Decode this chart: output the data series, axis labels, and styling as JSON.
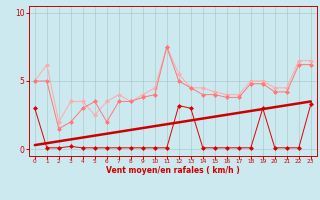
{
  "x": [
    0,
    1,
    2,
    3,
    4,
    5,
    6,
    7,
    8,
    9,
    10,
    11,
    12,
    13,
    14,
    15,
    16,
    17,
    18,
    19,
    20,
    21,
    22,
    23
  ],
  "series_light": [
    5.0,
    6.2,
    2.0,
    3.5,
    3.5,
    2.5,
    3.5,
    4.0,
    3.5,
    4.0,
    4.5,
    7.5,
    5.5,
    4.5,
    4.5,
    4.2,
    4.0,
    4.0,
    5.0,
    5.0,
    4.5,
    4.5,
    6.5,
    6.5
  ],
  "series_mid": [
    5.0,
    5.0,
    1.5,
    2.0,
    3.0,
    3.5,
    2.0,
    3.5,
    3.5,
    3.8,
    4.0,
    7.5,
    5.0,
    4.5,
    4.0,
    4.0,
    3.8,
    3.8,
    4.8,
    4.8,
    4.2,
    4.2,
    6.2,
    6.2
  ],
  "series_dark": [
    3.0,
    0.1,
    0.1,
    0.2,
    0.1,
    0.1,
    0.1,
    0.1,
    0.1,
    0.1,
    0.1,
    0.1,
    3.2,
    3.0,
    0.1,
    0.1,
    0.1,
    0.1,
    0.1,
    3.0,
    0.1,
    0.1,
    0.1,
    3.3
  ],
  "trend_x": [
    0,
    23
  ],
  "trend_y": [
    0.3,
    3.5
  ],
  "bg_color": "#cce9f0",
  "grid_color": "#aacccc",
  "color_light": "#ffaaaa",
  "color_mid": "#ff7777",
  "color_dark": "#dd0000",
  "color_trend": "#cc0000",
  "xlabel": "Vent moyen/en rafales ( km/h )",
  "xlim": [
    -0.5,
    23.5
  ],
  "ylim": [
    -0.5,
    10.5
  ],
  "yticks": [
    0,
    5,
    10
  ],
  "xticks": [
    0,
    1,
    2,
    3,
    4,
    5,
    6,
    7,
    8,
    9,
    10,
    11,
    12,
    13,
    14,
    15,
    16,
    17,
    18,
    19,
    20,
    21,
    22,
    23
  ],
  "xlabel_fontsize": 5.5,
  "tick_fontsize_x": 4.2,
  "tick_fontsize_y": 5.5
}
